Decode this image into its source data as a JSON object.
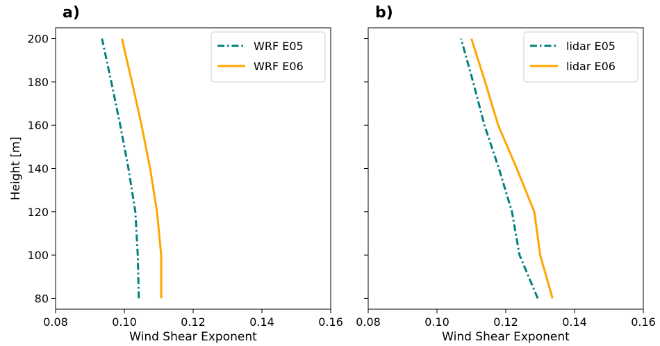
{
  "chart_data": [
    {
      "type": "line",
      "panel_label": "a)",
      "xlabel": "Wind Shear Exponent",
      "ylabel": "Height [m]",
      "xlim": [
        0.08,
        0.16
      ],
      "ylim": [
        75,
        205
      ],
      "xticks": [
        0.08,
        0.1,
        0.12,
        0.14,
        0.16
      ],
      "xtick_labels": [
        "0.08",
        "0.10",
        "0.12",
        "0.14",
        "0.16"
      ],
      "yticks": [
        80,
        100,
        120,
        140,
        160,
        180,
        200
      ],
      "ytick_labels": [
        "80",
        "100",
        "120",
        "140",
        "160",
        "180",
        "200"
      ],
      "grid": false,
      "legend_position": "top-right",
      "series": [
        {
          "name": "WRF E05",
          "color": "#008080",
          "style": "dashdot",
          "x": [
            0.1042,
            0.1039,
            0.1032,
            0.1012,
            0.0988,
            0.0962,
            0.0935
          ],
          "y": [
            80,
            100,
            120,
            140,
            160,
            180,
            200
          ]
        },
        {
          "name": "WRF E06",
          "color": "#FFA500",
          "style": "solid",
          "x": [
            0.1107,
            0.1107,
            0.1095,
            0.1075,
            0.105,
            0.1022,
            0.0993
          ],
          "y": [
            80,
            100,
            120,
            140,
            160,
            180,
            200
          ]
        }
      ]
    },
    {
      "type": "line",
      "panel_label": "b)",
      "xlabel": "Wind Shear Exponent",
      "ylabel": "",
      "xlim": [
        0.08,
        0.16
      ],
      "ylim": [
        75,
        205
      ],
      "xticks": [
        0.08,
        0.1,
        0.12,
        0.14,
        0.16
      ],
      "xtick_labels": [
        "0.08",
        "0.10",
        "0.12",
        "0.14",
        "0.16"
      ],
      "yticks": [
        80,
        100,
        120,
        140,
        160,
        180,
        200
      ],
      "ytick_labels": [],
      "grid": false,
      "legend_position": "top-right",
      "series": [
        {
          "name": "lidar E05",
          "color": "#008080",
          "style": "dashdot",
          "x": [
            0.1293,
            0.124,
            0.1218,
            0.118,
            0.1138,
            0.1105,
            0.107
          ],
          "y": [
            80,
            100,
            120,
            140,
            160,
            180,
            200
          ]
        },
        {
          "name": "lidar E06",
          "color": "#FFA500",
          "style": "solid",
          "x": [
            0.1336,
            0.13,
            0.1283,
            0.1232,
            0.1178,
            0.114,
            0.11
          ],
          "y": [
            80,
            100,
            120,
            140,
            160,
            180,
            200
          ]
        }
      ]
    }
  ]
}
